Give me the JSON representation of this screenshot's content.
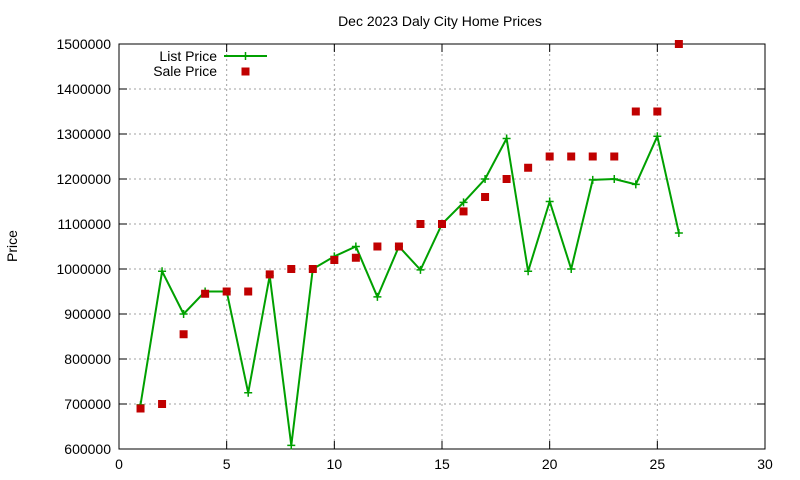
{
  "chart_data": {
    "type": "line",
    "title": "Dec 2023 Daly City Home Prices",
    "xlabel": "",
    "ylabel": "Price",
    "xlim": [
      0,
      30
    ],
    "ylim": [
      600000,
      1500000
    ],
    "x_ticks": [
      0,
      5,
      10,
      15,
      20,
      25,
      30
    ],
    "y_ticks": [
      600000,
      700000,
      800000,
      900000,
      1000000,
      1100000,
      1200000,
      1300000,
      1400000,
      1500000
    ],
    "grid": true,
    "legend_position": "top-left",
    "series": [
      {
        "name": "List Price",
        "style": "line-plus",
        "color": "#00a000",
        "x": [
          1,
          2,
          3,
          4,
          5,
          6,
          7,
          8,
          9,
          10,
          11,
          12,
          13,
          14,
          15,
          16,
          17,
          18,
          19,
          20,
          21,
          22,
          23,
          24,
          25,
          26
        ],
        "y": [
          698000,
          995000,
          900000,
          950000,
          950000,
          725000,
          985000,
          608000,
          1000000,
          1028000,
          1050000,
          938000,
          1050000,
          998000,
          1100000,
          1148000,
          1200000,
          1290000,
          995000,
          1150000,
          1000000,
          1198000,
          1200000,
          1188000,
          1295000,
          1080000
        ]
      },
      {
        "name": "Sale Price",
        "style": "marker-square",
        "color": "#c00000",
        "x": [
          1,
          2,
          3,
          4,
          5,
          6,
          7,
          8,
          9,
          10,
          11,
          12,
          13,
          14,
          15,
          16,
          17,
          18,
          19,
          20,
          21,
          22,
          23,
          24,
          25,
          26
        ],
        "y": [
          690000,
          700000,
          855000,
          945000,
          950000,
          950000,
          988000,
          1000000,
          1000000,
          1020000,
          1025000,
          1050000,
          1050000,
          1100000,
          1100000,
          1128000,
          1160000,
          1200000,
          1225000,
          1250000,
          1250000,
          1250000,
          1250000,
          1350000,
          1350000,
          1500000
        ]
      }
    ]
  }
}
